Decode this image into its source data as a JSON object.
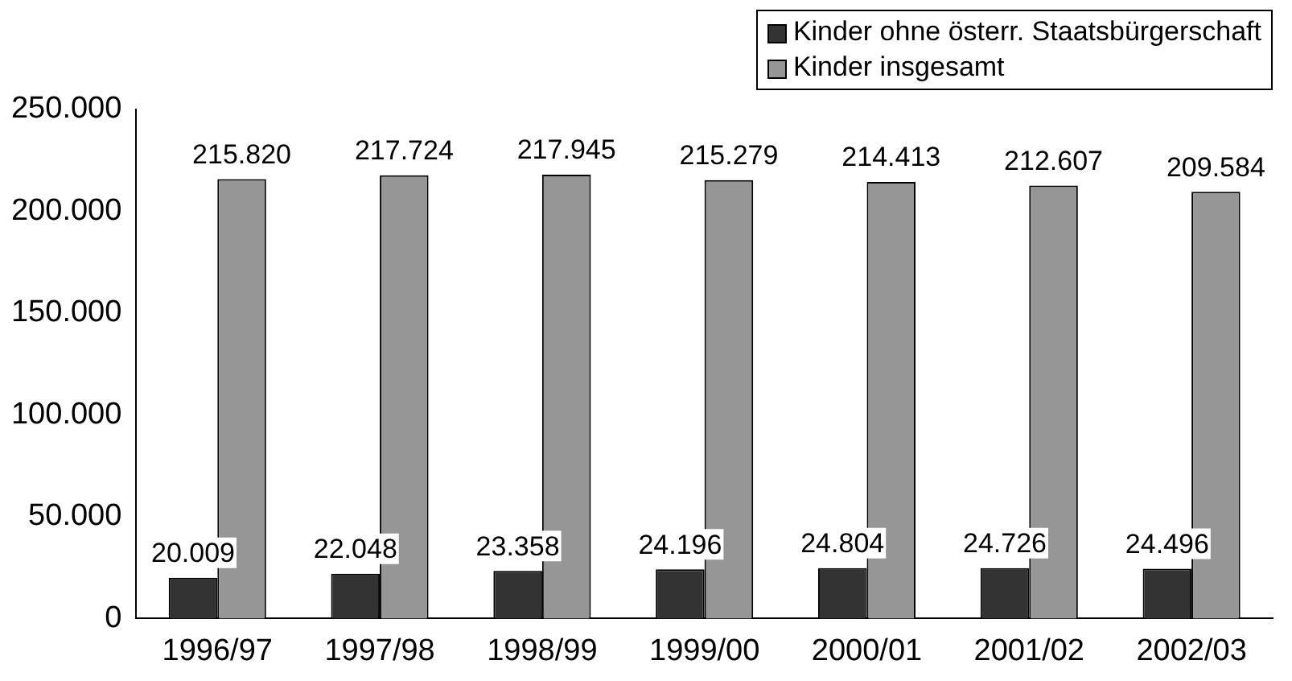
{
  "chart_data": {
    "type": "bar",
    "categories": [
      "1996/97",
      "1997/98",
      "1998/99",
      "1999/00",
      "2000/01",
      "2001/02",
      "2002/03"
    ],
    "series": [
      {
        "name": "Kinder ohne österr. Staatsbürgerschaft",
        "color": "#333333",
        "values": [
          20009,
          22048,
          23358,
          24196,
          24804,
          24726,
          24496
        ],
        "value_labels": [
          "20.009",
          "22.048",
          "23.358",
          "24.196",
          "24.804",
          "24.726",
          "24.496"
        ]
      },
      {
        "name": "Kinder insgesamt",
        "color": "#969696",
        "values": [
          215820,
          217724,
          217945,
          215279,
          214413,
          212607,
          209584
        ],
        "value_labels": [
          "215.820",
          "217.724",
          "217.945",
          "215.279",
          "214.413",
          "212.607",
          "209.584"
        ]
      }
    ],
    "ylim": [
      0,
      250000
    ],
    "yticks": [
      0,
      {
        "value": 50000,
        "label": "50.000"
      },
      {
        "value": 100000,
        "label": "100.000"
      },
      {
        "value": 150000,
        "label": "150.000"
      },
      {
        "value": 200000,
        "label": "200.000"
      },
      {
        "value": 250000,
        "label": "250.000"
      }
    ],
    "grid": false,
    "legend": "top right"
  }
}
